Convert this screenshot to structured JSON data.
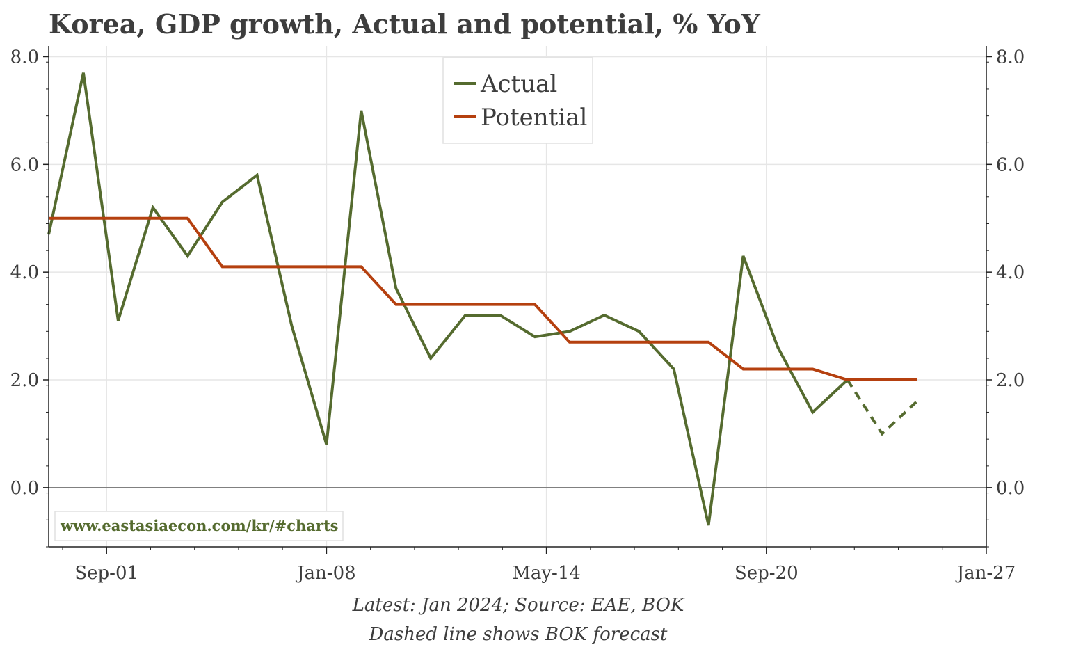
{
  "chart_data": {
    "type": "line",
    "title": "Korea, GDP growth, Actual and potential, % YoY",
    "xlabel": "",
    "ylabel": "",
    "ylim": [
      -1.1,
      8.2
    ],
    "yticks": [
      0,
      2,
      4,
      6,
      8
    ],
    "ytick_labels": [
      "0.0",
      "2.0",
      "4.0",
      "6.0",
      "8.0"
    ],
    "xlim": [
      2000.0,
      2027.0
    ],
    "xticks": [
      {
        "label": "Sep-01",
        "date": "2001-09"
      },
      {
        "label": "Jan-08",
        "date": "2008-01"
      },
      {
        "label": "May-14",
        "date": "2014-05"
      },
      {
        "label": "Sep-20",
        "date": "2020-09"
      },
      {
        "label": "Jan-27",
        "date": "2027-01"
      }
    ],
    "grid": true,
    "legend_position": "top-center",
    "series": [
      {
        "name": "Actual",
        "color": "#556b2f",
        "style": "solid",
        "points": [
          {
            "date": "2000",
            "value": 4.7
          },
          {
            "date": "2001",
            "value": 7.7
          },
          {
            "date": "2002",
            "value": 3.1
          },
          {
            "date": "2003",
            "value": 5.2
          },
          {
            "date": "2004",
            "value": 4.3
          },
          {
            "date": "2005",
            "value": 5.3
          },
          {
            "date": "2006",
            "value": 5.8
          },
          {
            "date": "2007",
            "value": 3.0
          },
          {
            "date": "2008",
            "value": 0.8
          },
          {
            "date": "2009",
            "value": 7.0
          },
          {
            "date": "2010",
            "value": 3.7
          },
          {
            "date": "2011",
            "value": 2.4
          },
          {
            "date": "2012",
            "value": 3.2
          },
          {
            "date": "2013",
            "value": 3.2
          },
          {
            "date": "2014",
            "value": 2.8
          },
          {
            "date": "2015",
            "value": 2.9
          },
          {
            "date": "2016",
            "value": 3.2
          },
          {
            "date": "2017",
            "value": 2.9
          },
          {
            "date": "2018",
            "value": 2.2
          },
          {
            "date": "2019",
            "value": -0.7
          },
          {
            "date": "2020",
            "value": 4.3
          },
          {
            "date": "2021",
            "value": 2.6
          },
          {
            "date": "2022",
            "value": 1.4
          },
          {
            "date": "2023",
            "value": 2.0
          }
        ]
      },
      {
        "name": "Actual",
        "show_in_legend": false,
        "color": "#556b2f",
        "style": "dashed",
        "points": [
          {
            "date": "2023",
            "value": 2.0
          },
          {
            "date": "2024",
            "value": 1.0
          },
          {
            "date": "2025",
            "value": 1.6
          }
        ]
      },
      {
        "name": "Potential",
        "color": "#b5400f",
        "style": "solid",
        "points": [
          {
            "date": "2000",
            "value": 5.0
          },
          {
            "date": "2004",
            "value": 5.0
          },
          {
            "date": "2005",
            "value": 4.1
          },
          {
            "date": "2009",
            "value": 4.1
          },
          {
            "date": "2010",
            "value": 3.4
          },
          {
            "date": "2014",
            "value": 3.4
          },
          {
            "date": "2015",
            "value": 2.7
          },
          {
            "date": "2019",
            "value": 2.7
          },
          {
            "date": "2020",
            "value": 2.2
          },
          {
            "date": "2022",
            "value": 2.2
          },
          {
            "date": "2023",
            "value": 2.0
          },
          {
            "date": "2025",
            "value": 2.0
          }
        ]
      }
    ],
    "watermark": "www.eastasiaecon.com/kr/#charts",
    "footnotes": [
      "Latest: Jan 2024; Source: EAE, BOK",
      "Dashed line shows BOK forecast"
    ]
  },
  "colors": {
    "text": "#3d3d3d",
    "grid": "#e6e6e6",
    "zero_line": "#808080",
    "watermark": "#556b2f"
  }
}
